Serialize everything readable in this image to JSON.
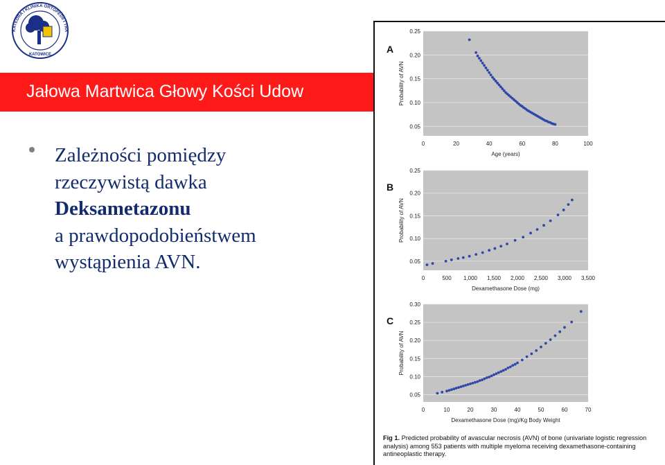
{
  "header": {
    "title": "Jałowa Martwica Głowy Kości Udow"
  },
  "logo": {
    "text_ring": "KATEDRA I KLINIKA ORTOPEDII I TRAUMATOLOGII NARZĄDU RUCHU SUM",
    "city": "KATOWICE"
  },
  "bullet": {
    "line1": "Zależności pomiędzy",
    "line2": "rzeczywistą dawka",
    "line3": "Deksametazonu",
    "line4": "a prawdopodobieństwem",
    "line5": "wystąpienia AVN."
  },
  "caption": {
    "lead": "Fig 1.",
    "text": "Predicted probability of avascular necrosis (AVN) of bone (univariate logistic regression analysis) among 553 patients with multiple myeloma receiving dexamethasone-containing antineoplastic therapy."
  },
  "colors": {
    "title_bar": "#ff1a1a",
    "bullet_text": "#122c6e",
    "plot_bg": "#c4c4c4",
    "points": "#2f47a8"
  },
  "chart_data": [
    {
      "panel": "A",
      "type": "scatter",
      "xlabel": "Age (years)",
      "ylabel": "Probability of AVN",
      "xlim": [
        0,
        100
      ],
      "ylim": [
        0.03,
        0.25
      ],
      "xticks": [
        "0",
        "20",
        "40",
        "60",
        "80",
        "100"
      ],
      "yticks": [
        "0.05",
        "0.10",
        "0.15",
        "0.20",
        "0.25"
      ],
      "grid": true,
      "x": [
        28,
        32,
        33,
        34,
        35,
        36,
        37,
        38,
        39,
        40,
        41,
        42,
        43,
        44,
        45,
        46,
        47,
        48,
        49,
        50,
        51,
        52,
        53,
        54,
        55,
        56,
        57,
        58,
        59,
        60,
        61,
        62,
        63,
        64,
        65,
        66,
        67,
        68,
        69,
        70,
        71,
        72,
        73,
        74,
        75,
        76,
        77,
        78,
        79,
        80
      ],
      "y": [
        0.232,
        0.205,
        0.198,
        0.193,
        0.188,
        0.183,
        0.178,
        0.173,
        0.168,
        0.163,
        0.158,
        0.153,
        0.149,
        0.145,
        0.141,
        0.137,
        0.133,
        0.129,
        0.125,
        0.121,
        0.118,
        0.115,
        0.112,
        0.109,
        0.106,
        0.103,
        0.1,
        0.097,
        0.094,
        0.092,
        0.089,
        0.087,
        0.084,
        0.082,
        0.08,
        0.078,
        0.076,
        0.074,
        0.072,
        0.07,
        0.068,
        0.066,
        0.064,
        0.062,
        0.061,
        0.059,
        0.058,
        0.056,
        0.055,
        0.054
      ]
    },
    {
      "panel": "B",
      "type": "scatter",
      "xlabel": "Dexamethasone Dose (mg)",
      "ylabel": "Probability of AVN",
      "xlim": [
        0,
        3500
      ],
      "ylim": [
        0.03,
        0.25
      ],
      "xticks": [
        "0",
        "500",
        "1,000",
        "1,500",
        "2,000",
        "2,500",
        "3,000",
        "3,500"
      ],
      "yticks": [
        "0.05",
        "0.10",
        "0.15",
        "0.20",
        "0.25"
      ],
      "grid": true,
      "x": [
        80,
        200,
        480,
        600,
        740,
        850,
        980,
        1120,
        1260,
        1400,
        1520,
        1650,
        1780,
        1950,
        2120,
        2280,
        2420,
        2560,
        2700,
        2860,
        2980,
        3080,
        3160
      ],
      "y": [
        0.042,
        0.045,
        0.05,
        0.053,
        0.056,
        0.058,
        0.061,
        0.065,
        0.069,
        0.074,
        0.078,
        0.083,
        0.088,
        0.096,
        0.103,
        0.112,
        0.12,
        0.129,
        0.139,
        0.152,
        0.163,
        0.175,
        0.185
      ]
    },
    {
      "panel": "C",
      "type": "scatter",
      "xlabel": "Dexamethasone Dose (mg)/Kg Body Weight",
      "ylabel": "Probability of AVN",
      "xlim": [
        0,
        70
      ],
      "ylim": [
        0.03,
        0.3
      ],
      "xticks": [
        "0",
        "10",
        "20",
        "30",
        "40",
        "50",
        "60",
        "70"
      ],
      "yticks": [
        "0.05",
        "0.10",
        "0.15",
        "0.20",
        "0.25",
        "0.30"
      ],
      "grid": true,
      "x": [
        6,
        8,
        10,
        11,
        12,
        13,
        14,
        15,
        16,
        17,
        18,
        19,
        20,
        21,
        22,
        23,
        24,
        25,
        26,
        27,
        28,
        29,
        30,
        31,
        32,
        33,
        34,
        35,
        36,
        37,
        38,
        39,
        40,
        42,
        44,
        46,
        48,
        50,
        52,
        54,
        56,
        58,
        60,
        63,
        67
      ],
      "y": [
        0.054,
        0.057,
        0.06,
        0.062,
        0.064,
        0.066,
        0.068,
        0.07,
        0.072,
        0.074,
        0.076,
        0.078,
        0.08,
        0.082,
        0.084,
        0.086,
        0.089,
        0.091,
        0.094,
        0.097,
        0.099,
        0.102,
        0.105,
        0.108,
        0.111,
        0.114,
        0.117,
        0.12,
        0.124,
        0.127,
        0.131,
        0.134,
        0.138,
        0.146,
        0.155,
        0.163,
        0.172,
        0.182,
        0.192,
        0.202,
        0.213,
        0.224,
        0.236,
        0.251,
        0.28
      ]
    }
  ]
}
